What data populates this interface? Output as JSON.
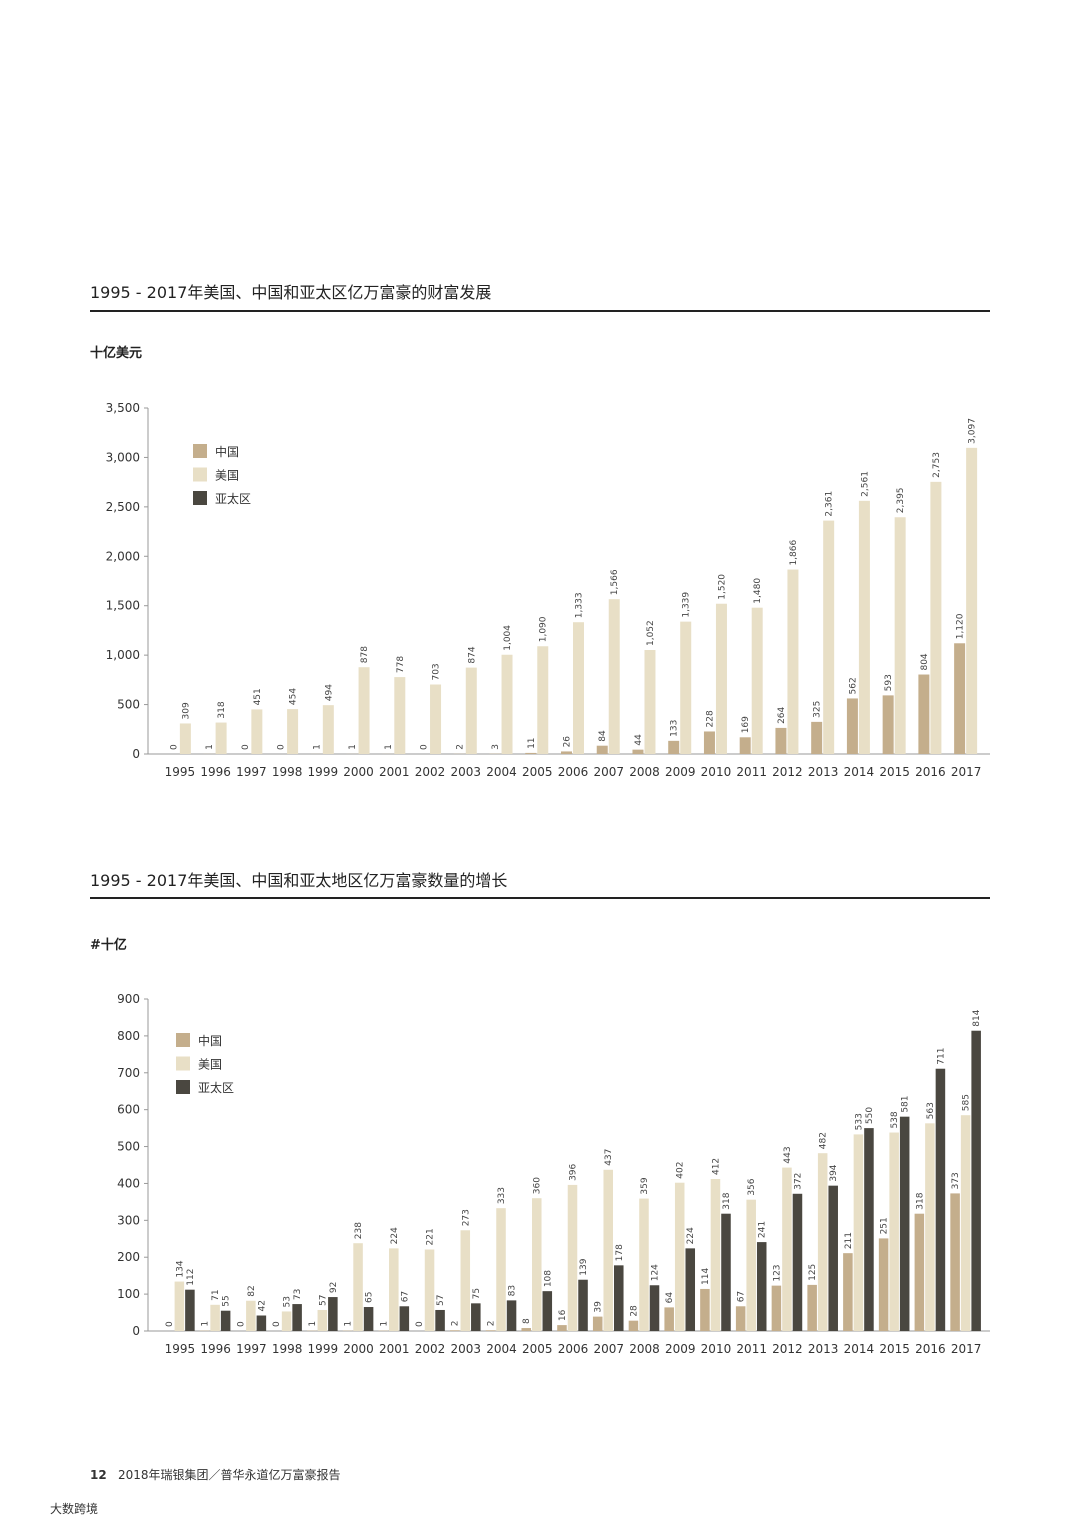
{
  "chart_data": [
    {
      "type": "bar",
      "title": "1995 - 2017年美国、中国和亚太区亿万富豪的财富发展",
      "y_label": "十亿美元",
      "categories": [
        "1995",
        "1996",
        "1997",
        "1998",
        "1999",
        "2000",
        "2001",
        "2002",
        "2003",
        "2004",
        "2005",
        "2006",
        "2007",
        "2008",
        "2009",
        "2010",
        "2011",
        "2012",
        "2013",
        "2014",
        "2015",
        "2016",
        "2017"
      ],
      "series": [
        {
          "name": "中国",
          "color": "#c4ae8c",
          "values": [
            0,
            1,
            0,
            0,
            1,
            1,
            1,
            0,
            2,
            3,
            11,
            26,
            84,
            44,
            133,
            228,
            169,
            264,
            325,
            562,
            593,
            804,
            1120
          ],
          "value_labels": [
            "0",
            "1",
            "0",
            "0",
            "1",
            "1",
            "1",
            "0",
            "2",
            "3",
            "11",
            "26",
            "84",
            "44",
            "133",
            "228",
            "169",
            "264",
            "325",
            "562",
            "593",
            "804",
            "1,120"
          ]
        },
        {
          "name": "美国",
          "color": "#e8dfc6",
          "values": [
            309,
            318,
            451,
            454,
            494,
            878,
            778,
            703,
            874,
            1004,
            1090,
            1333,
            1566,
            1052,
            1339,
            1520,
            1480,
            1866,
            2361,
            2561,
            2395,
            2753,
            3097
          ],
          "value_labels": [
            "309",
            "318",
            "451",
            "454",
            "494",
            "878",
            "778",
            "703",
            "874",
            "1,004",
            "1,090",
            "1,333",
            "1,566",
            "1,052",
            "1,339",
            "1,520",
            "1,480",
            "1,866",
            "2,361",
            "2,561",
            "2,395",
            "2,753",
            "3,097"
          ]
        },
        {
          "name": "亚太区",
          "color": "#4a4740",
          "values": [
            null,
            null,
            null,
            null,
            null,
            null,
            null,
            null,
            null,
            null,
            null,
            null,
            null,
            null,
            null,
            null,
            null,
            null,
            null,
            null,
            null,
            null,
            null
          ]
        }
      ],
      "ylim": [
        0,
        3500
      ],
      "yticks": [
        0,
        500,
        {
          "value": 1000,
          "label": "1,000"
        },
        {
          "value": 1500,
          "label": "1,500"
        },
        {
          "value": 2000,
          "label": "2,000"
        },
        {
          "value": 2500,
          "label": "2,500"
        },
        {
          "value": 3000,
          "label": "3,000"
        },
        {
          "value": 3500,
          "label": "3,500"
        }
      ],
      "legend": "upper left"
    },
    {
      "type": "bar",
      "title": "1995 - 2017年美国、中国和亚太地区亿万富豪数量的增长",
      "y_label": "#十亿",
      "categories": [
        "1995",
        "1996",
        "1997",
        "1998",
        "1999",
        "2000",
        "2001",
        "2002",
        "2003",
        "2004",
        "2005",
        "2006",
        "2007",
        "2008",
        "2009",
        "2010",
        "2011",
        "2012",
        "2013",
        "2014",
        "2015",
        "2016",
        "2017"
      ],
      "series": [
        {
          "name": "中国",
          "color": "#c4ae8c",
          "values": [
            0,
            1,
            0,
            0,
            1,
            1,
            1,
            0,
            2,
            2,
            8,
            16,
            39,
            28,
            64,
            114,
            67,
            123,
            125,
            211,
            251,
            318,
            373
          ]
        },
        {
          "name": "美国",
          "color": "#e8dfc6",
          "values": [
            134,
            71,
            82,
            53,
            57,
            238,
            224,
            221,
            273,
            333,
            360,
            396,
            437,
            359,
            402,
            412,
            356,
            443,
            482,
            533,
            538,
            563,
            585
          ]
        },
        {
          "name": "亚太区",
          "color": "#4a4740",
          "values": [
            112,
            55,
            42,
            73,
            92,
            65,
            67,
            57,
            75,
            83,
            108,
            139,
            178,
            124,
            224,
            318,
            241,
            372,
            394,
            550,
            581,
            711,
            814
          ]
        }
      ],
      "ylim": [
        0,
        900
      ],
      "yticks": [
        0,
        100,
        200,
        300,
        400,
        500,
        600,
        700,
        800,
        900
      ],
      "legend": "upper left"
    }
  ],
  "footer": {
    "page": "12",
    "text": "2018年瑞银集团／普华永道亿万富豪报告"
  },
  "watermark": "大数跨境"
}
